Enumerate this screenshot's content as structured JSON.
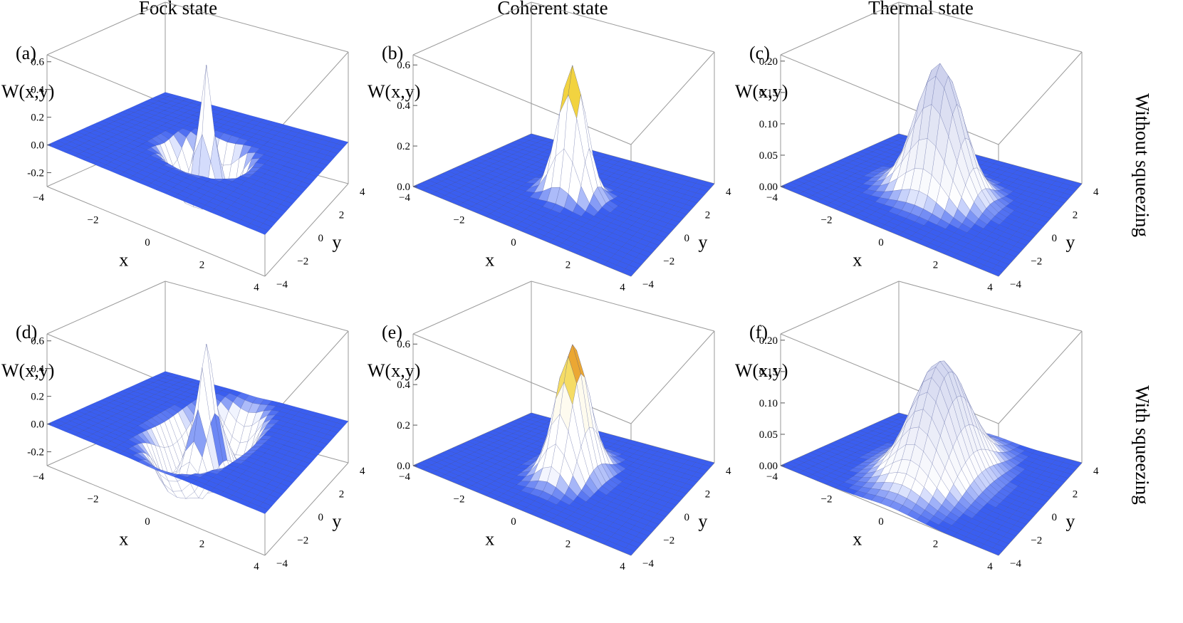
{
  "column_titles": [
    "Fock state",
    "Coherent state",
    "Thermal state"
  ],
  "row_titles": [
    "Without squeezing",
    "With squeezing"
  ],
  "chart_data": [
    {
      "type": "surface3d",
      "panel": "(a)",
      "state": "Fock state",
      "squeezing": "none",
      "zlabel": "W(x,y)",
      "xlabel": "x",
      "ylabel": "y",
      "xticks": [
        "-4",
        "-2",
        "0",
        "2",
        "4"
      ],
      "yticks": [
        "-4",
        "-2",
        "0",
        "2",
        "4"
      ],
      "zticks": [
        "-0.2",
        "0.0",
        "0.2",
        "0.4",
        "0.6"
      ],
      "xlim": [
        -4,
        4
      ],
      "ylim": [
        -4,
        4
      ],
      "zlim": [
        -0.3,
        0.65
      ],
      "peak_value": 0.64,
      "ring_minimum": -0.32,
      "ring_radius": 1.0,
      "squeeze_x": 1.0,
      "squeeze_y": 1.0
    },
    {
      "type": "surface3d",
      "panel": "(b)",
      "state": "Coherent state",
      "squeezing": "none",
      "zlabel": "W(x,y)",
      "xlabel": "x",
      "ylabel": "y",
      "xticks": [
        "-4",
        "-2",
        "0",
        "2",
        "4"
      ],
      "yticks": [
        "-4",
        "-2",
        "0",
        "2",
        "4"
      ],
      "zticks": [
        "0.0",
        "0.2",
        "0.4",
        "0.6"
      ],
      "xlim": [
        -4,
        4
      ],
      "ylim": [
        -4,
        4
      ],
      "zlim": [
        0,
        0.65
      ],
      "peak_value": 0.64,
      "width": 0.7,
      "squeeze_x": 1.0,
      "squeeze_y": 1.0
    },
    {
      "type": "surface3d",
      "panel": "(c)",
      "state": "Thermal state",
      "squeezing": "none",
      "zlabel": "W(x,y)",
      "xlabel": "x",
      "ylabel": "y",
      "xticks": [
        "-4",
        "-2",
        "0",
        "2",
        "4"
      ],
      "yticks": [
        "-4",
        "-2",
        "0",
        "2",
        "4"
      ],
      "zticks": [
        "0.00",
        "0.05",
        "0.10",
        "0.15",
        "0.20"
      ],
      "xlim": [
        -4,
        4
      ],
      "ylim": [
        -4,
        4
      ],
      "zlim": [
        0,
        0.21
      ],
      "peak_value": 0.21,
      "width": 1.2,
      "squeeze_x": 1.0,
      "squeeze_y": 1.0
    },
    {
      "type": "surface3d",
      "panel": "(d)",
      "state": "Fock state",
      "squeezing": "squeezed",
      "zlabel": "W(x,y)",
      "xlabel": "x",
      "ylabel": "y",
      "xticks": [
        "-4",
        "-2",
        "0",
        "2",
        "4"
      ],
      "yticks": [
        "-4",
        "-2",
        "0",
        "2",
        "4"
      ],
      "zticks": [
        "-0.2",
        "0.0",
        "0.2",
        "0.4",
        "0.6"
      ],
      "xlim": [
        -4,
        4
      ],
      "ylim": [
        -4,
        4
      ],
      "zlim": [
        -0.3,
        0.65
      ],
      "peak_value": 0.64,
      "ring_minimum": -0.32,
      "ring_radius": 1.0,
      "squeeze_x": 1.0,
      "squeeze_y": 2.2
    },
    {
      "type": "surface3d",
      "panel": "(e)",
      "state": "Coherent state",
      "squeezing": "squeezed",
      "zlabel": "W(x,y)",
      "xlabel": "x",
      "ylabel": "y",
      "xticks": [
        "-4",
        "-2",
        "0",
        "2",
        "4"
      ],
      "yticks": [
        "-4",
        "-2",
        "0",
        "2",
        "4"
      ],
      "zticks": [
        "0.0",
        "0.2",
        "0.4",
        "0.6"
      ],
      "xlim": [
        -4,
        4
      ],
      "ylim": [
        -4,
        4
      ],
      "zlim": [
        0,
        0.65
      ],
      "peak_value": 0.64,
      "width": 0.7,
      "squeeze_x": 1.0,
      "squeeze_y": 1.8
    },
    {
      "type": "surface3d",
      "panel": "(f)",
      "state": "Thermal state",
      "squeezing": "squeezed",
      "zlabel": "W(x,y)",
      "xlabel": "x",
      "ylabel": "y",
      "xticks": [
        "-4",
        "-2",
        "0",
        "2",
        "4"
      ],
      "yticks": [
        "-4",
        "-2",
        "0",
        "2",
        "4"
      ],
      "zticks": [
        "0.00",
        "0.05",
        "0.10",
        "0.15",
        "0.20"
      ],
      "xlim": [
        -4,
        4
      ],
      "ylim": [
        -4,
        4
      ],
      "zlim": [
        0,
        0.21
      ],
      "peak_value": 0.18,
      "width": 1.2,
      "squeeze_x": 1.0,
      "squeeze_y": 1.8
    }
  ],
  "colors": {
    "plane": "#3a5ef0",
    "peak_low": "#ffffff",
    "peak_mid": "#f2d23c",
    "peak_high": "#d9341c",
    "box": "#9a9a9a"
  }
}
